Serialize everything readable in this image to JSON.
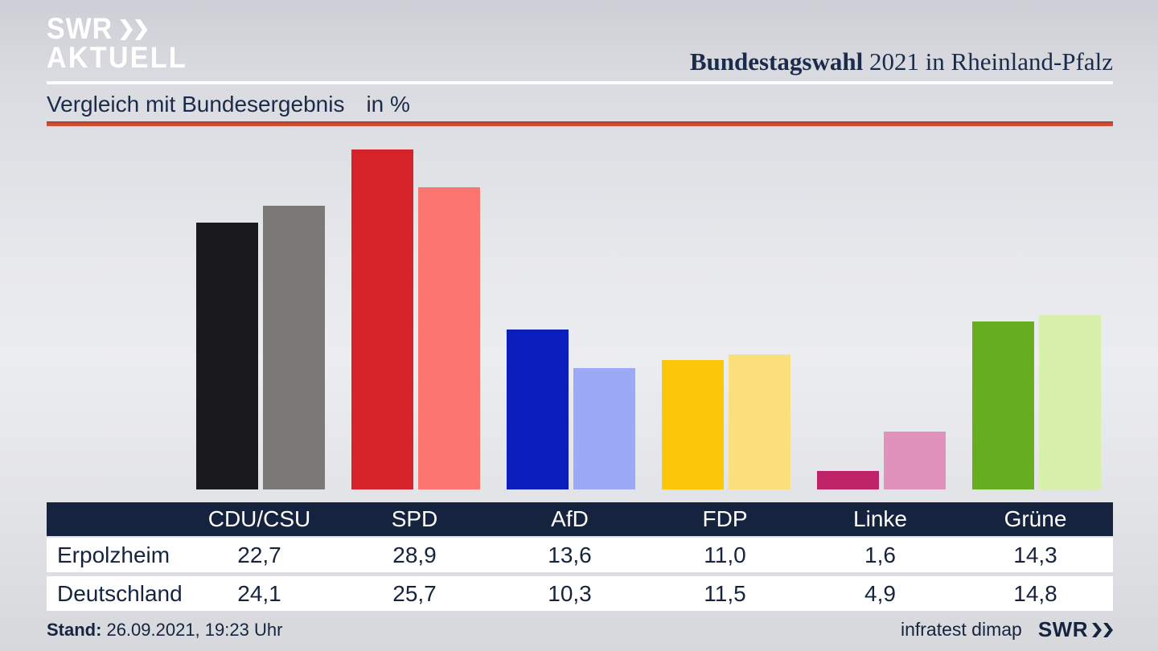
{
  "brand": {
    "logo_line1": "SWR",
    "logo_line2": "AKTUELL",
    "chevron_icon": "double-chevron-right"
  },
  "header": {
    "title_bold": "Bundestagswahl",
    "title_rest": " 2021 in Rheinland-Pfalz"
  },
  "subtitle": {
    "text": "Vergleich mit Bundesergebnis",
    "unit": "in %"
  },
  "chart_data": {
    "type": "bar",
    "title": "Vergleich mit Bundesergebnis in %",
    "categories": [
      "CDU/CSU",
      "SPD",
      "AfD",
      "FDP",
      "Linke",
      "Grüne"
    ],
    "series": [
      {
        "name": "Erpolzheim",
        "values": [
          22.7,
          28.9,
          13.6,
          11.0,
          1.6,
          14.3
        ],
        "colors": [
          "#1a191d",
          "#d6232a",
          "#0c1fbd",
          "#fcc70a",
          "#bf2367",
          "#66ad21"
        ]
      },
      {
        "name": "Deutschland",
        "values": [
          24.1,
          25.7,
          10.3,
          11.5,
          4.9,
          14.8
        ],
        "colors": [
          "#7b7977",
          "#fa766e",
          "#9caaf6",
          "#fbdf7d",
          "#e192ba",
          "#d9f0ad"
        ]
      }
    ],
    "unit": "%",
    "ylim": [
      0,
      29.5
    ],
    "grid": false,
    "legend": "table-below"
  },
  "table": {
    "columns": [
      "CDU/CSU",
      "SPD",
      "AfD",
      "FDP",
      "Linke",
      "Grüne"
    ],
    "rows": [
      {
        "label": "Erpolzheim",
        "values": [
          "22,7",
          "28,9",
          "13,6",
          "11,0",
          "1,6",
          "14,3"
        ]
      },
      {
        "label": "Deutschland",
        "values": [
          "24,1",
          "25,7",
          "10,3",
          "11,5",
          "4,9",
          "14,8"
        ]
      }
    ]
  },
  "footer": {
    "stand_label": "Stand:",
    "stand_value": "26.09.2021, 19:23 Uhr",
    "source": "infratest dimap",
    "source_logo": "SWR"
  },
  "colors": {
    "accent_line": "#cc4b33",
    "table_header_bg": "#16233f",
    "text_navy": "#1b2b4a",
    "logo_white": "#ffffff"
  }
}
